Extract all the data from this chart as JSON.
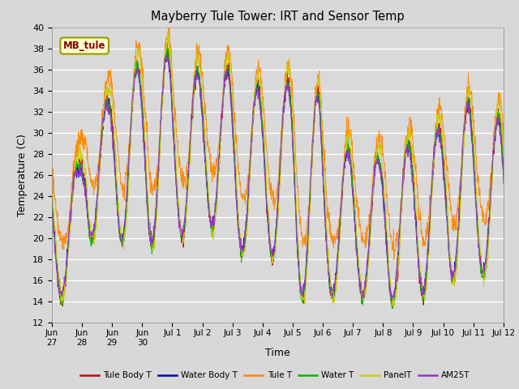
{
  "title": "Mayberry Tule Tower: IRT and Sensor Temp",
  "xlabel": "Time",
  "ylabel": "Temperature (C)",
  "ylim": [
    12,
    40
  ],
  "yticks": [
    12,
    14,
    16,
    18,
    20,
    22,
    24,
    26,
    28,
    30,
    32,
    34,
    36,
    38,
    40
  ],
  "bg_color": "#d8d8d8",
  "plot_bg_color": "#d9d9d9",
  "grid_color": "white",
  "series_colors": {
    "Tule Body T": "#cc0000",
    "Water Body T": "#0000cc",
    "Tule T": "#ff8800",
    "Water T": "#00bb00",
    "PanelT": "#cccc00",
    "AM25T": "#9933cc"
  },
  "legend_label": "MB_tule",
  "legend_box_color": "#ffffcc",
  "legend_box_edge": "#999900",
  "x_tick_labels": [
    "Jun\n27",
    "Jun\n28",
    "Jun\n29",
    "Jun\n30",
    "Jul 1",
    "Jul 2",
    "Jul 3",
    "Jul 4",
    "Jul 5",
    "Jul 6",
    "Jul 7",
    "Jul 8",
    "Jul 9",
    "Jul 10",
    "Jul 11",
    "Jul 12"
  ],
  "x_tick_positions": [
    0,
    1,
    2,
    3,
    4,
    5,
    6,
    7,
    8,
    9,
    10,
    11,
    12,
    13,
    14,
    15
  ]
}
